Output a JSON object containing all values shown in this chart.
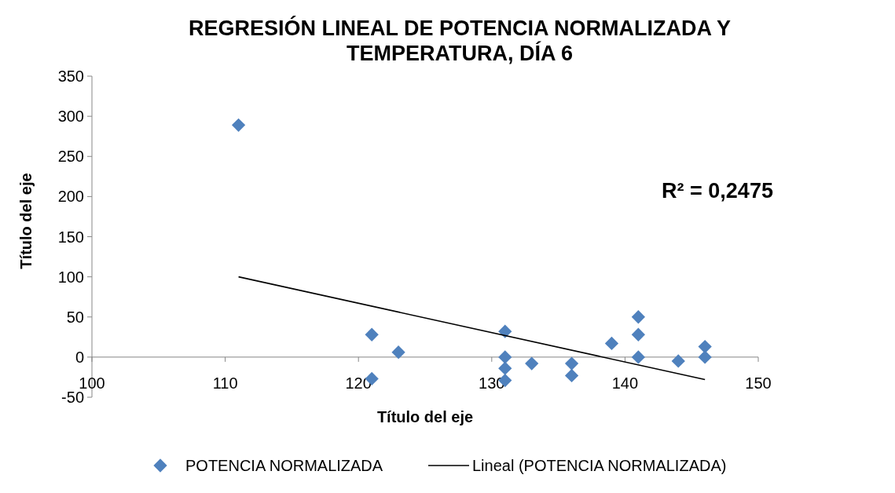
{
  "chart_data": {
    "type": "scatter",
    "title": "REGRESIÓN LINEAL DE POTENCIA NORMALIZADA Y TEMPERATURA, DÍA 6",
    "xlabel": "Título del eje",
    "ylabel": "Título del eje",
    "annotations": [
      "R² = 0,2475"
    ],
    "xlim": [
      100,
      150
    ],
    "xticks": [
      100,
      110,
      120,
      130,
      140,
      150
    ],
    "ylim": [
      -50,
      350
    ],
    "yticks": [
      -50,
      0,
      50,
      100,
      150,
      200,
      250,
      300,
      350
    ],
    "grid": false,
    "legend": "bottom",
    "marker": "diamond",
    "series": [
      {
        "name": "POTENCIA NORMALIZADA",
        "color": "#4f81bd",
        "x": [
          111,
          121,
          121,
          123,
          131,
          131,
          131,
          131,
          133,
          136,
          136,
          139,
          141,
          141,
          141,
          144,
          146,
          146
        ],
        "values": [
          289,
          28,
          -27,
          6,
          32,
          0,
          -14,
          -29,
          -8,
          -8,
          -23,
          17,
          50,
          28,
          0,
          -5,
          13,
          0
        ]
      },
      {
        "name": "Lineal (POTENCIA NORMALIZADA)",
        "type": "line",
        "color": "#000000",
        "line_style": "solid",
        "marker": "none",
        "x": [
          111,
          146
        ],
        "values": [
          100,
          -28
        ]
      }
    ]
  }
}
